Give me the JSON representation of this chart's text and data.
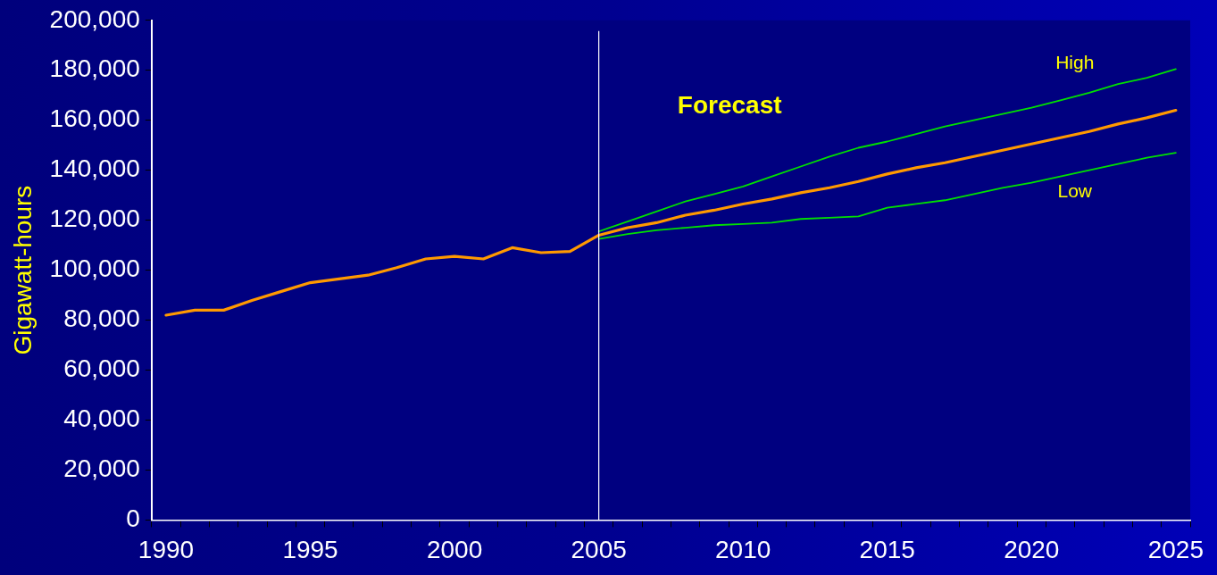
{
  "chart_data": {
    "type": "line",
    "ylabel": "Gigawatt-hours",
    "categories": [
      "1990",
      null,
      null,
      null,
      null,
      "1995",
      null,
      null,
      null,
      null,
      "2000",
      null,
      null,
      null,
      null,
      "2005",
      null,
      null,
      null,
      null,
      "2010",
      null,
      null,
      null,
      null,
      "2015",
      null,
      null,
      null,
      null,
      "2020",
      null,
      null,
      null,
      null,
      "2025"
    ],
    "series": [
      {
        "color": "#00e000",
        "name": "High",
        "values": [
          null,
          null,
          null,
          null,
          null,
          null,
          null,
          null,
          null,
          null,
          null,
          null,
          null,
          null,
          null,
          115500,
          119500,
          123500,
          127500,
          130500,
          133500,
          137500,
          141500,
          145500,
          149000,
          151500,
          154500,
          157500,
          160000,
          162500,
          165000,
          168000,
          171000,
          174500,
          177000,
          180500
        ]
      },
      {
        "color": "#00e000",
        "name": "Low",
        "values": [
          null,
          null,
          null,
          null,
          null,
          null,
          null,
          null,
          null,
          null,
          null,
          null,
          null,
          null,
          null,
          112500,
          114500,
          116000,
          117000,
          118000,
          118500,
          119000,
          120500,
          121000,
          121500,
          125000,
          126500,
          128000,
          130500,
          133000,
          135000,
          137500,
          140000,
          142500,
          145000,
          147000
        ]
      },
      {
        "color": "#ff9900",
        "values": [
          82000,
          84000,
          84000,
          88000,
          91500,
          95000,
          96500,
          98000,
          101000,
          104500,
          105500,
          104500,
          109000,
          107000,
          107500,
          114000,
          117000,
          119000,
          122000,
          124000,
          126500,
          128500,
          131000,
          133000,
          135500,
          138500,
          141000,
          143000,
          145500,
          148000,
          150500,
          153000,
          155500,
          158500,
          161000,
          164000
        ]
      }
    ],
    "ylim": [
      0,
      200000
    ],
    "yticks": [
      {
        "value": 0,
        "label": "0"
      },
      {
        "value": 20000,
        "label": "20,000"
      },
      {
        "value": 40000,
        "label": "40,000"
      },
      {
        "value": 60000,
        "label": "60,000"
      },
      {
        "value": 80000,
        "label": "80,000"
      },
      {
        "value": 100000,
        "label": "100,000"
      },
      {
        "value": 120000,
        "label": "120,000"
      },
      {
        "value": 140000,
        "label": "140,000"
      },
      {
        "value": 160000,
        "label": "160,000"
      },
      {
        "value": 180000,
        "label": "180,000"
      },
      {
        "value": 200000,
        "label": "200,000"
      }
    ],
    "ref_lines": [
      {
        "axis": "x",
        "value": "2005",
        "color": "#ffffff"
      }
    ],
    "annotations": [
      "Forecast"
    ],
    "grid": false,
    "legend": false,
    "marker": "none",
    "line_style": "solid"
  }
}
